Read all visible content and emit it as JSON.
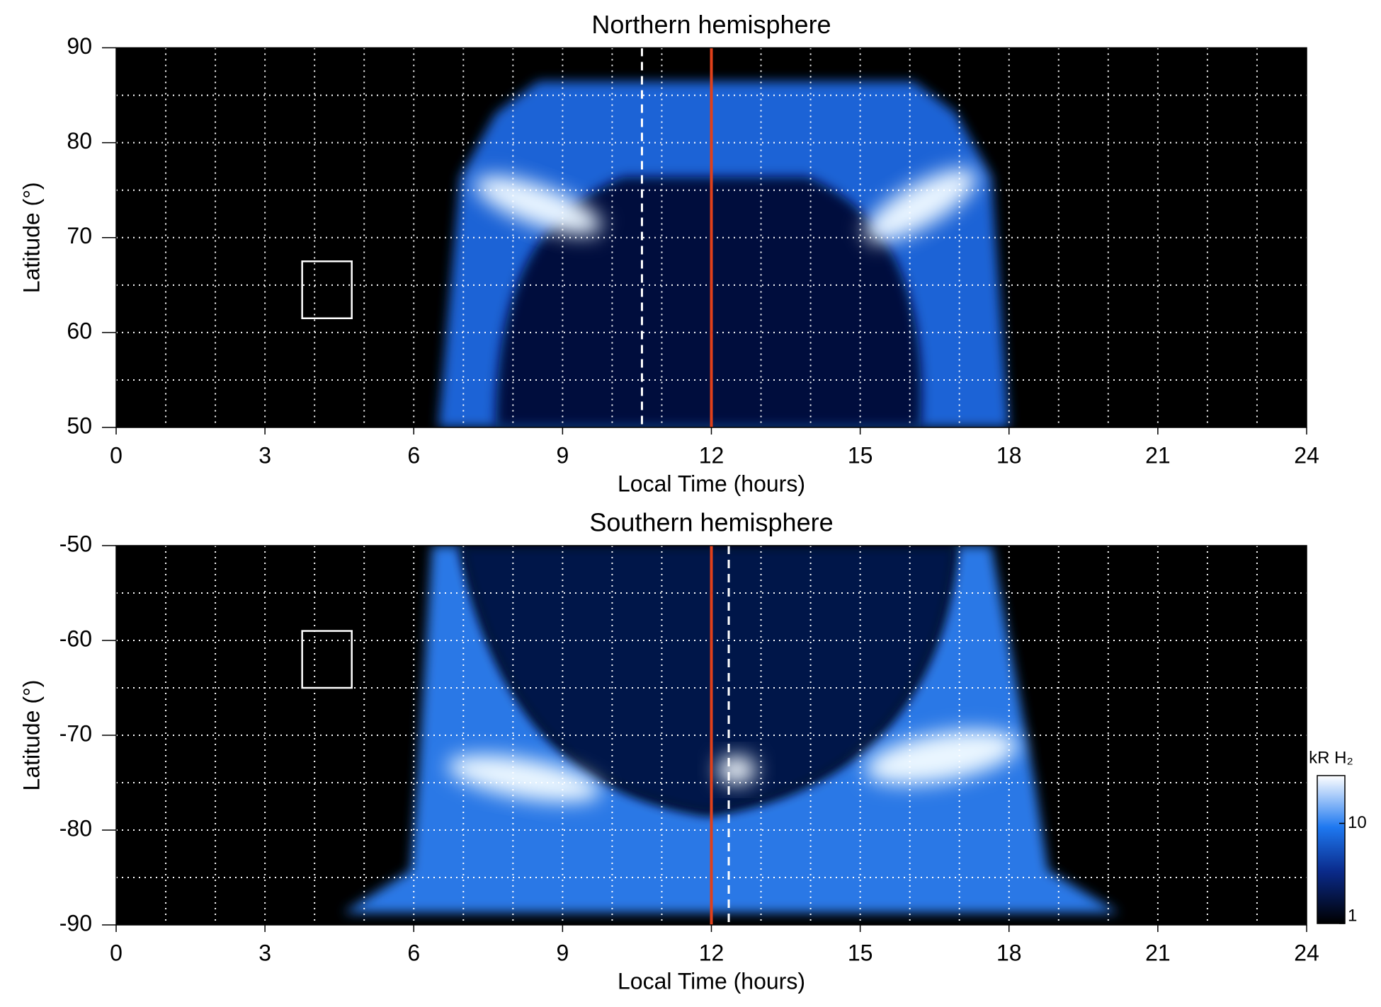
{
  "chart_data": [
    {
      "type": "heatmap",
      "title": "Northern hemisphere",
      "xlabel": "Local Time (hours)",
      "ylabel": "Latitude (°)",
      "xlim": [
        0,
        24
      ],
      "xticks": [
        0,
        3,
        6,
        9,
        12,
        15,
        18,
        21,
        24
      ],
      "ylim": [
        50,
        90
      ],
      "yticks": [
        50,
        60,
        70,
        80,
        90
      ],
      "xgrid": [
        1,
        2,
        3,
        4,
        5,
        6,
        7,
        8,
        9,
        10,
        11,
        12,
        13,
        14,
        15,
        16,
        17,
        18,
        19,
        20,
        21,
        22,
        23
      ],
      "ygrid": [
        55,
        60,
        65,
        70,
        75,
        80,
        85
      ],
      "vlines": [
        {
          "x": 10.6,
          "color": "#ffffff",
          "style": "dashed"
        },
        {
          "x": 12,
          "color": "#e0401a",
          "style": "solid"
        }
      ],
      "boxes": [
        {
          "xlim": [
            3.75,
            4.75
          ],
          "ylim": [
            61.5,
            67.5
          ],
          "color": "#ffffff"
        }
      ]
    },
    {
      "type": "heatmap",
      "title": "Southern hemisphere",
      "xlabel": "Local Time (hours)",
      "ylabel": "Latitude (°)",
      "xlim": [
        0,
        24
      ],
      "xticks": [
        0,
        3,
        6,
        9,
        12,
        15,
        18,
        21,
        24
      ],
      "ylim": [
        -90,
        -50
      ],
      "yticks": [
        -90,
        -80,
        -70,
        -60,
        -50
      ],
      "xgrid": [
        1,
        2,
        3,
        4,
        5,
        6,
        7,
        8,
        9,
        10,
        11,
        12,
        13,
        14,
        15,
        16,
        17,
        18,
        19,
        20,
        21,
        22,
        23
      ],
      "ygrid": [
        -85,
        -80,
        -75,
        -70,
        -65,
        -60,
        -55
      ],
      "vlines": [
        {
          "x": 12.35,
          "color": "#ffffff",
          "style": "dashed"
        },
        {
          "x": 12,
          "color": "#e0401a",
          "style": "solid"
        }
      ],
      "boxes": [
        {
          "xlim": [
            3.75,
            4.75
          ],
          "ylim": [
            -65,
            -59
          ],
          "color": "#ffffff"
        }
      ]
    }
  ],
  "colorbar": {
    "label": "kR H₂",
    "lim": [
      1,
      30
    ],
    "ticks": [
      1,
      10
    ],
    "log": true
  }
}
